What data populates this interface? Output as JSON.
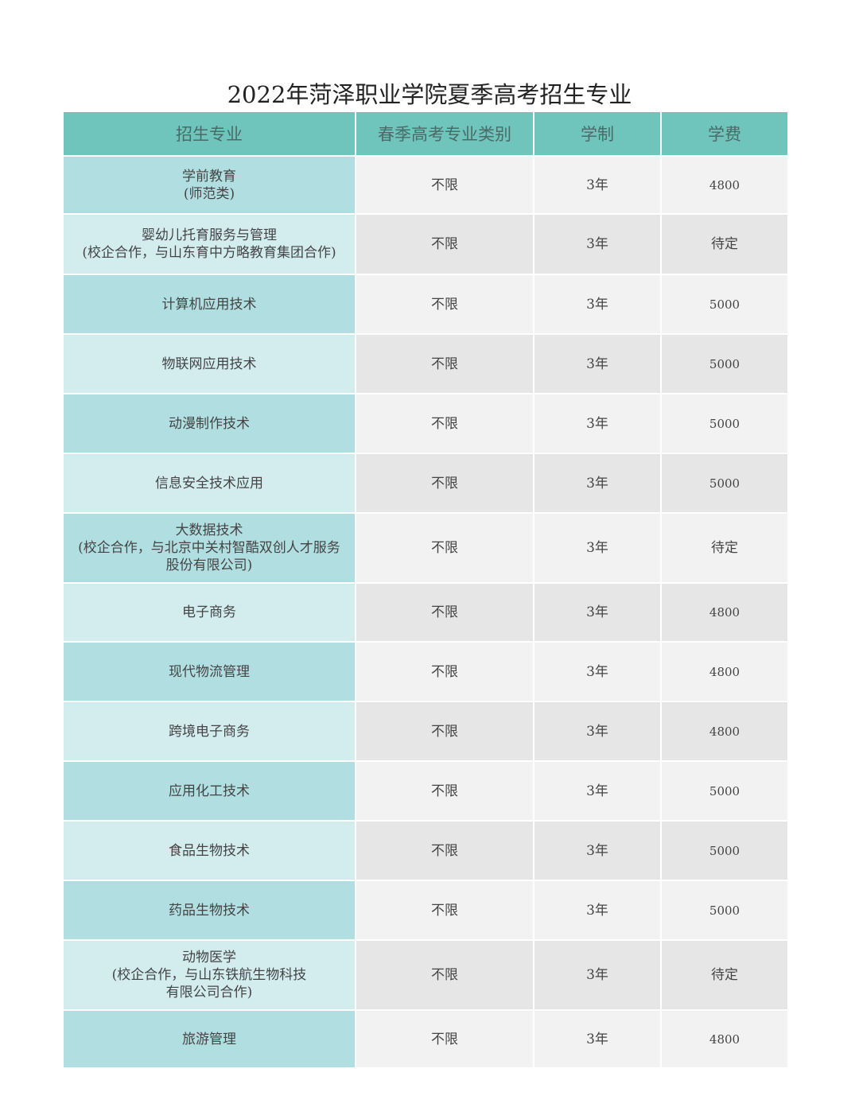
{
  "title": "2022年菏泽职业学院夏季高考招生专业",
  "columns": [
    "招生专业",
    "春季高考专业类别",
    "学制",
    "学费"
  ],
  "colors": {
    "header": "#6fc5bb",
    "major_dark": "#b1dfe1",
    "major_light": "#d3edef",
    "cell_light": "#f2f2f2",
    "cell_dark": "#e6e6e6"
  },
  "rows": [
    {
      "major": [
        "学前教育",
        "(师范类)"
      ],
      "category": "不限",
      "years": "3年",
      "fee": "4800"
    },
    {
      "major": [
        "婴幼儿托育服务与管理",
        "(校企合作，与山东育中方略教育集团合作)"
      ],
      "category": "不限",
      "years": "3年",
      "fee": "待定"
    },
    {
      "major": [
        "计算机应用技术"
      ],
      "category": "不限",
      "years": "3年",
      "fee": "5000"
    },
    {
      "major": [
        "物联网应用技术"
      ],
      "category": "不限",
      "years": "3年",
      "fee": "5000"
    },
    {
      "major": [
        "动漫制作技术"
      ],
      "category": "不限",
      "years": "3年",
      "fee": "5000"
    },
    {
      "major": [
        "信息安全技术应用"
      ],
      "category": "不限",
      "years": "3年",
      "fee": "5000"
    },
    {
      "major": [
        "大数据技术",
        "(校企合作，与北京中关村智酷双创人才服务",
        "股份有限公司)"
      ],
      "category": "不限",
      "years": "3年",
      "fee": "待定"
    },
    {
      "major": [
        "电子商务"
      ],
      "category": "不限",
      "years": "3年",
      "fee": "4800"
    },
    {
      "major": [
        "现代物流管理"
      ],
      "category": "不限",
      "years": "3年",
      "fee": "4800"
    },
    {
      "major": [
        "跨境电子商务"
      ],
      "category": "不限",
      "years": "3年",
      "fee": "4800"
    },
    {
      "major": [
        "应用化工技术"
      ],
      "category": "不限",
      "years": "3年",
      "fee": "5000"
    },
    {
      "major": [
        "食品生物技术"
      ],
      "category": "不限",
      "years": "3年",
      "fee": "5000"
    },
    {
      "major": [
        "药品生物技术"
      ],
      "category": "不限",
      "years": "3年",
      "fee": "5000"
    },
    {
      "major": [
        "动物医学",
        "(校企合作，与山东铁航生物科技",
        "有限公司合作)"
      ],
      "category": "不限",
      "years": "3年",
      "fee": "待定"
    },
    {
      "major": [
        "旅游管理"
      ],
      "category": "不限",
      "years": "3年",
      "fee": "4800"
    }
  ]
}
